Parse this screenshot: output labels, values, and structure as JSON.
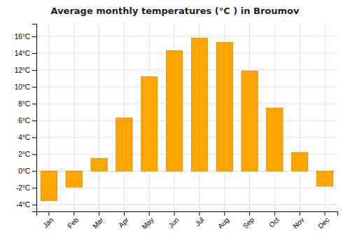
{
  "chart_data": {
    "type": "bar",
    "title": "Average monthly temperatures (°C ) in Broumov",
    "categories": [
      "Jan",
      "Feb",
      "Mar",
      "Apr",
      "May",
      "Jun",
      "Jul",
      "Aug",
      "Sep",
      "Oct",
      "Nov",
      "Dec"
    ],
    "values": [
      -3.5,
      -1.9,
      1.5,
      6.3,
      11.2,
      14.3,
      15.8,
      15.3,
      11.9,
      7.5,
      2.2,
      -1.8
    ],
    "color": "#FFA500",
    "ylim": [
      -4.8,
      17.5
    ],
    "yticks": [
      {
        "value": -4,
        "label": "-4°C"
      },
      {
        "value": -2,
        "label": "-2°C"
      },
      {
        "value": 0,
        "label": "0°C"
      },
      {
        "value": 2,
        "label": "2°C"
      },
      {
        "value": 4,
        "label": "4°C"
      },
      {
        "value": 6,
        "label": "6°C"
      },
      {
        "value": 8,
        "label": "8°C"
      },
      {
        "value": 10,
        "label": "10°C"
      },
      {
        "value": 12,
        "label": "12°C"
      },
      {
        "value": 14,
        "label": "14°C"
      },
      {
        "value": 16,
        "label": "16°C"
      }
    ],
    "grid": true
  }
}
